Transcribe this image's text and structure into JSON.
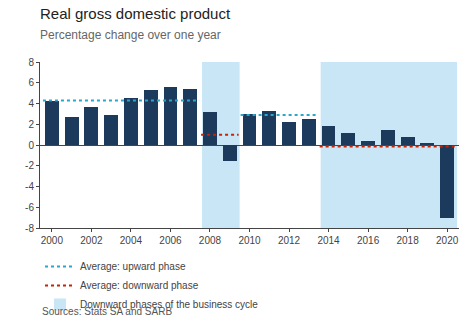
{
  "chart_data": {
    "type": "bar",
    "title": "Real gross domestic product",
    "subtitle": "Percentage change over one year",
    "source": "Sources: Stats SA and SARB",
    "x": [
      2000,
      2001,
      2002,
      2003,
      2004,
      2005,
      2006,
      2007,
      2008,
      2009,
      2010,
      2011,
      2012,
      2013,
      2014,
      2015,
      2016,
      2017,
      2018,
      2019,
      2020
    ],
    "values": [
      4.2,
      2.7,
      3.7,
      2.9,
      4.5,
      5.3,
      5.6,
      5.4,
      3.2,
      -1.5,
      3.0,
      3.3,
      2.2,
      2.5,
      1.8,
      1.2,
      0.4,
      1.4,
      0.8,
      0.2,
      -7.0
    ],
    "color": "#1b3a5c",
    "xlim": [
      1999.4,
      2020.6
    ],
    "xticks": [
      2000,
      2002,
      2004,
      2006,
      2008,
      2010,
      2012,
      2014,
      2016,
      2018,
      2020
    ],
    "ylim": [
      -8,
      8
    ],
    "yticks": [
      -8,
      -6,
      -4,
      -2,
      0,
      2,
      4,
      6,
      8
    ],
    "grid": false,
    "legend": "bottom",
    "reference_lines": [
      {
        "name": "Average: upward phase",
        "color": "#29a8cc",
        "line_style": "dotted",
        "segments": [
          {
            "x_start": 1999.55,
            "x_end": 2007.45,
            "y": 4.3
          },
          {
            "x_start": 2009.55,
            "x_end": 2013.45,
            "y": 2.9
          }
        ]
      },
      {
        "name": "Average: downward phase",
        "color": "#cc2200",
        "line_style": "dotted",
        "segments": [
          {
            "x_start": 2007.55,
            "x_end": 2009.45,
            "y": 1.0
          },
          {
            "x_start": 2013.55,
            "x_end": 2020.45,
            "y": -0.15
          }
        ]
      }
    ],
    "shaded_regions": {
      "name": "Downward phases of the business cycle",
      "color": "#c8e6f5",
      "ranges": [
        [
          2007.6,
          2009.5
        ],
        [
          2013.6,
          2020.5
        ]
      ]
    }
  }
}
